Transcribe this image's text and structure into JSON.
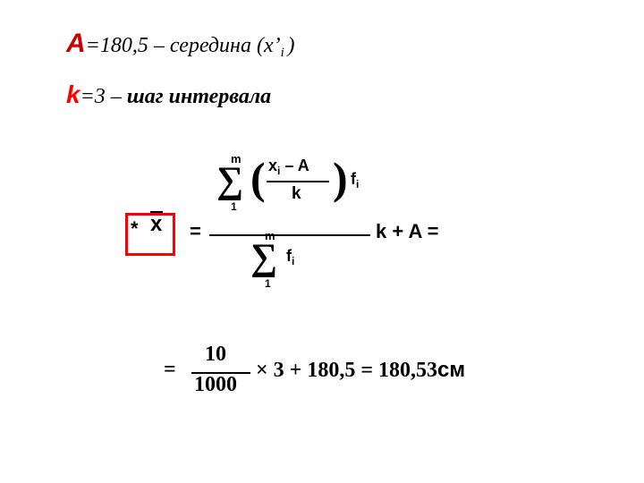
{
  "colors": {
    "accent_A": "#cc0000",
    "accent_k": "#ff0000",
    "frame": "#ff0000",
    "text": "#000000",
    "background": "#ffffff"
  },
  "line1": {
    "var": "А",
    "rest_prefix": "=180,5  – середина (x’",
    "subscript": "i ",
    "rest_suffix": ")"
  },
  "line2": {
    "var": "k",
    "rest_prefix": "=3  ",
    "dash": "– ",
    "bold": "шаг интервала"
  },
  "formula1": {
    "star": "*",
    "xbar": "x",
    "eq": "=",
    "sigma1": {
      "sym": "∑",
      "upper": "m",
      "lower": "1"
    },
    "paren": {
      "l": "(",
      "r": ")"
    },
    "numerator": {
      "xi": "x",
      "sub": "i",
      "minus": " – ",
      "A": "A"
    },
    "denominator": "k",
    "fi": {
      "f": "f",
      "sub": "i"
    },
    "sigma2": {
      "sym": "∑",
      "upper": "m",
      "lower": "1"
    },
    "tail": "k + A ="
  },
  "formula2": {
    "eq": "=",
    "frac_num": "10",
    "frac_den": "1000",
    "tail_math": "× 3 + 180,5 = 180,53",
    "unit": "см"
  },
  "fonts": {
    "serif": "Times New Roman",
    "sans": "Arial",
    "size_body": 24,
    "size_formula": 22,
    "size_script": 13
  }
}
